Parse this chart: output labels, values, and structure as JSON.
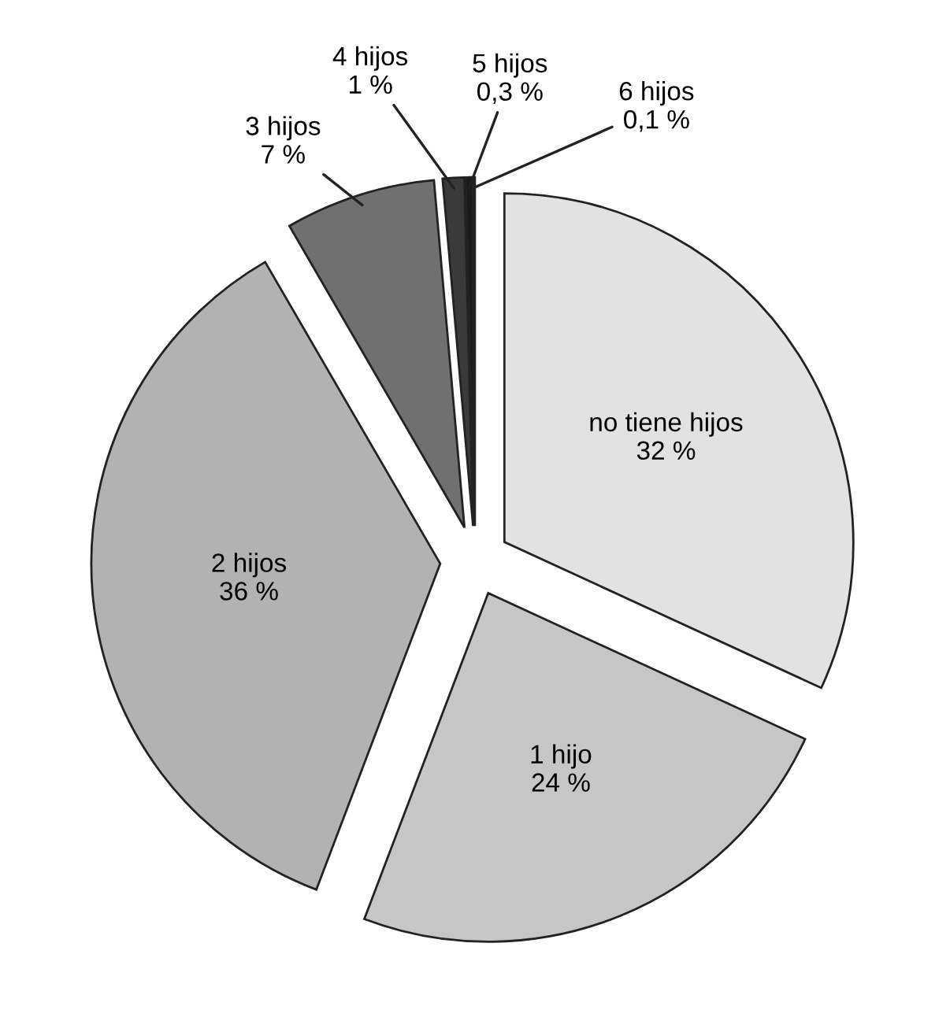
{
  "chart_data": {
    "type": "pie",
    "categories": [
      "no tiene hijos",
      "1 hijo",
      "2 hijos",
      "3 hijos",
      "4 hijos",
      "5 hijos",
      "6 hijos"
    ],
    "values": [
      32,
      24,
      36,
      7,
      1,
      0.3,
      0.1
    ],
    "value_labels": [
      "32 %",
      "24 %",
      "36 %",
      "7 %",
      "1 %",
      "0,3 %",
      "0,1 %"
    ],
    "colors": [
      "#e2e2e2",
      "#c6c6c6",
      "#b2b2b2",
      "#707070",
      "#3a3a3a",
      "#1a1a1a",
      "#505050"
    ]
  }
}
